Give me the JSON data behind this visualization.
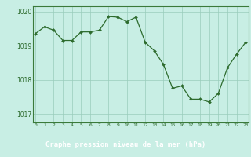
{
  "x": [
    0,
    1,
    2,
    3,
    4,
    5,
    6,
    7,
    8,
    9,
    10,
    11,
    12,
    13,
    14,
    15,
    16,
    17,
    18,
    19,
    20,
    21,
    22,
    23
  ],
  "y": [
    1019.35,
    1019.55,
    1019.45,
    1019.15,
    1019.15,
    1019.4,
    1019.4,
    1019.45,
    1019.85,
    1019.83,
    1019.7,
    1019.83,
    1019.1,
    1018.85,
    1018.45,
    1017.75,
    1017.82,
    1017.43,
    1017.43,
    1017.35,
    1017.6,
    1018.35,
    1018.75,
    1019.1
  ],
  "line_color": "#2d6b2d",
  "marker_color": "#2d6b2d",
  "bg_color": "#c8eee4",
  "plot_bg_color": "#c8eee4",
  "grid_color": "#99ccbb",
  "ylabel_ticks": [
    1017,
    1018,
    1019,
    1020
  ],
  "ylim": [
    1016.75,
    1020.15
  ],
  "xlabel": "Graphe pression niveau de la mer (hPa)",
  "bottom_bar_color": "#2d6b2d",
  "text_color": "#2d6b2d",
  "xlabel_color": "#c8eee4",
  "border_color": "#3a7a3a"
}
